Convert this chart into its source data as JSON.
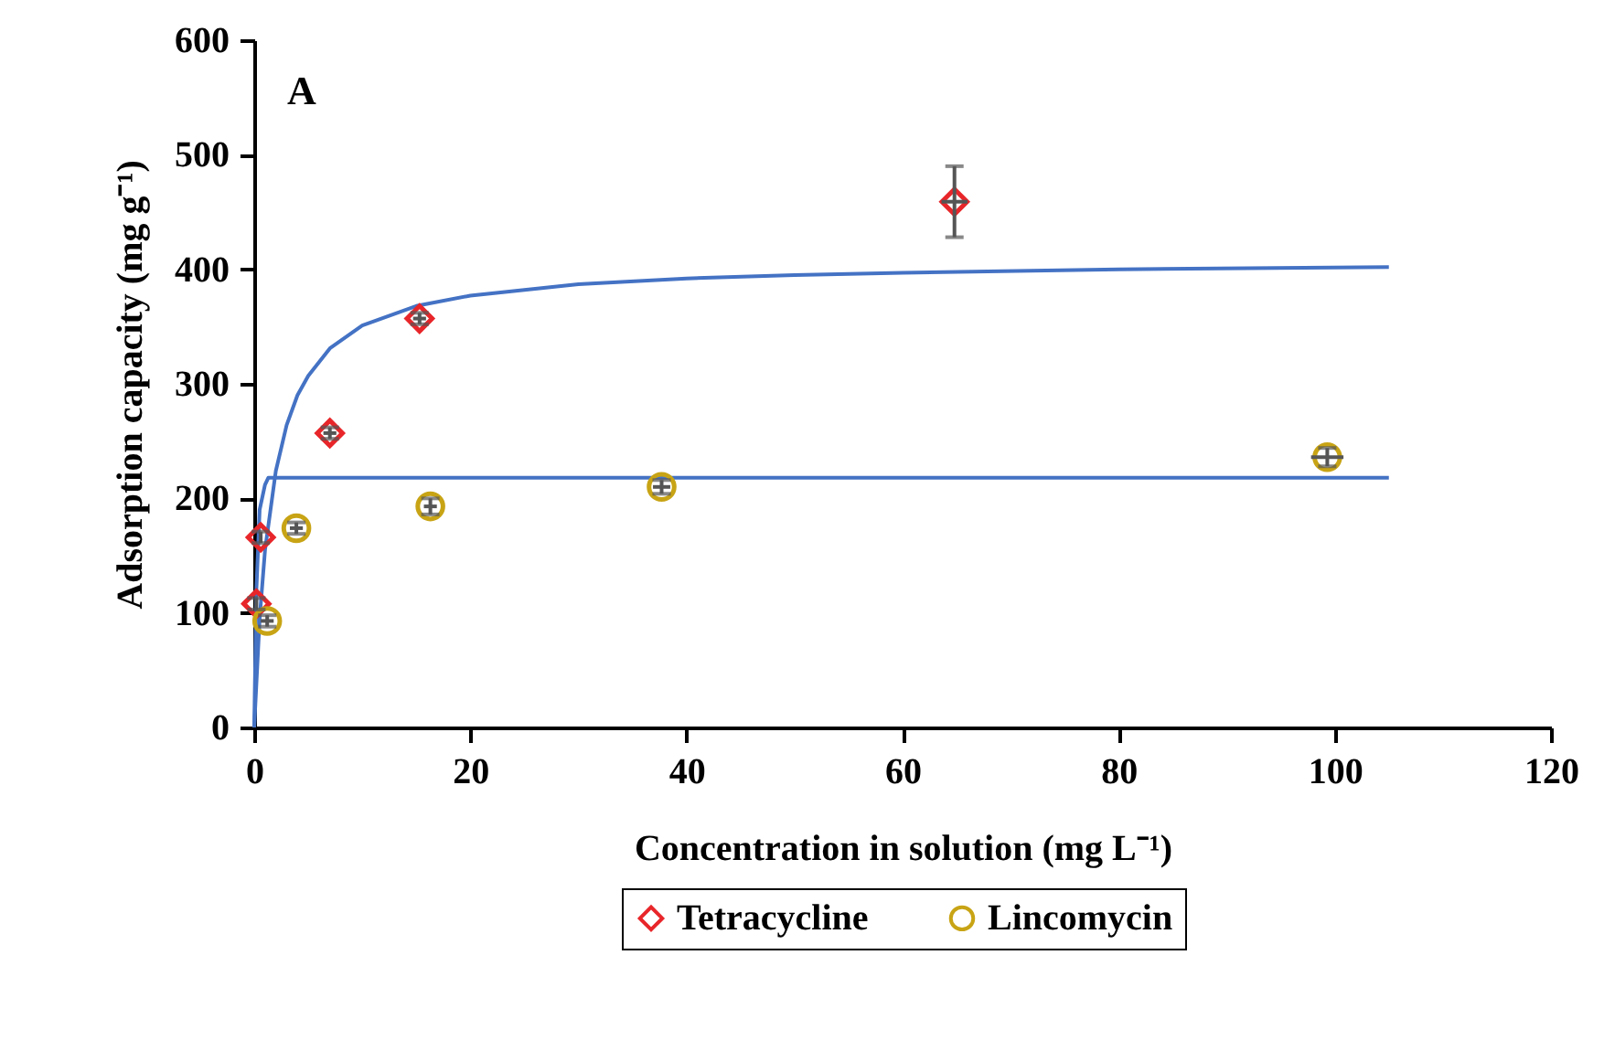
{
  "chart_data": {
    "type": "scatter",
    "xlabel": "Concentration in solution (mg L⁻¹)",
    "ylabel": "Adsorption capacity (mg g⁻¹)",
    "annotations": [
      "A"
    ],
    "xlim": [
      0,
      120
    ],
    "xticks": [
      0,
      20,
      40,
      60,
      80,
      100,
      120
    ],
    "ylim": [
      0,
      600
    ],
    "yticks": [
      0,
      100,
      200,
      300,
      400,
      500,
      600
    ],
    "grid": false,
    "legend": "bottom",
    "series": [
      {
        "type": "scatter",
        "name": "Tetracycline",
        "color": "#e8262a",
        "marker": "diamond",
        "x": [
          0.2,
          0.6,
          7.0,
          15.3,
          64.8
        ],
        "values": [
          108,
          166,
          257,
          357,
          459
        ],
        "errors": [
          5,
          5,
          5,
          5,
          31
        ],
        "xerrors": [
          null,
          null,
          0.6,
          0.6,
          1.2
        ]
      },
      {
        "type": "scatter",
        "name": "Lincomycin",
        "color": "#c8a415",
        "marker": "circle",
        "x": [
          1.2,
          3.9,
          16.3,
          37.7,
          99.3
        ],
        "values": [
          93,
          174,
          193,
          210,
          236
        ],
        "errors": [
          5,
          5,
          7,
          6,
          8
        ],
        "xerrors": [
          0.6,
          0.6,
          0.6,
          0.8,
          1.5
        ]
      },
      {
        "type": "line",
        "color": "#4472c4",
        "marker": "none",
        "x": [
          0,
          0.5,
          1,
          2,
          3,
          4,
          5,
          7,
          10,
          15,
          20,
          30,
          40,
          50,
          60,
          80,
          105
        ],
        "values": [
          0,
          95,
          155,
          224,
          264,
          290,
          307,
          331,
          351,
          368,
          377,
          387,
          392,
          395,
          397,
          400,
          402
        ]
      },
      {
        "type": "line",
        "color": "#4472c4",
        "marker": "none",
        "x": [
          0,
          0.2,
          0.5,
          1,
          1.3,
          20,
          50,
          105
        ],
        "values": [
          0,
          120,
          190,
          212,
          218,
          218,
          218,
          218
        ]
      }
    ]
  }
}
